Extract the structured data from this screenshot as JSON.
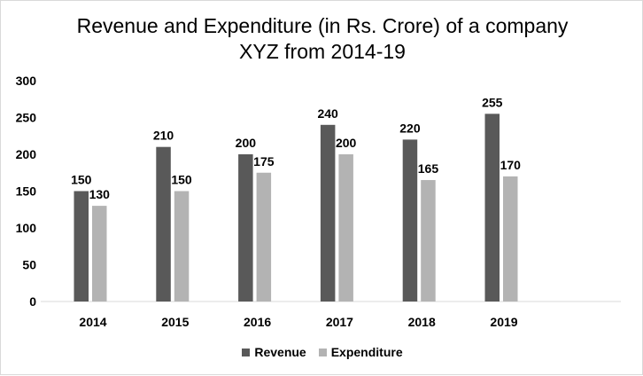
{
  "chart_data": {
    "type": "bar",
    "title_line1": "Revenue and Expenditure (in Rs. Crore) of a company",
    "title_line2": "XYZ from 2014-19",
    "categories": [
      "2014",
      "2015",
      "2016",
      "2017",
      "2018",
      "2019"
    ],
    "series": [
      {
        "name": "Revenue",
        "values": [
          150,
          210,
          200,
          240,
          220,
          255
        ],
        "color": "#595959"
      },
      {
        "name": "Expenditure",
        "values": [
          130,
          150,
          175,
          200,
          165,
          170
        ],
        "color": "#b3b3b3"
      }
    ],
    "ylim": [
      0,
      300
    ],
    "yticks": [
      0,
      50,
      100,
      150,
      200,
      250,
      300
    ],
    "grid": false,
    "legend_position": "bottom",
    "data_labels": true
  }
}
